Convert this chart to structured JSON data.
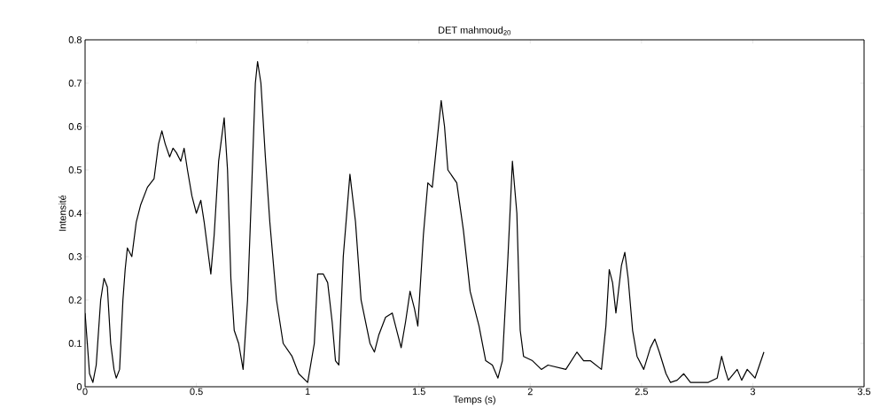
{
  "chart_data": {
    "type": "line",
    "title": "DET mahmoud$_{20}$",
    "xlabel": "Temps (s)",
    "ylabel": "Intensité",
    "xlim": [
      0,
      3.5
    ],
    "ylim": [
      0,
      0.8
    ],
    "xticks": [
      0,
      0.5,
      1,
      1.5,
      2,
      2.5,
      3,
      3.5
    ],
    "yticks": [
      0,
      0.1,
      0.2,
      0.3,
      0.4,
      0.5,
      0.6,
      0.7,
      0.8
    ],
    "grid": false,
    "marker": "none",
    "line_style": "solid",
    "x": [
      0.0,
      0.01,
      0.02,
      0.035,
      0.05,
      0.07,
      0.085,
      0.1,
      0.115,
      0.13,
      0.14,
      0.155,
      0.17,
      0.18,
      0.19,
      0.21,
      0.23,
      0.25,
      0.28,
      0.31,
      0.33,
      0.345,
      0.36,
      0.38,
      0.395,
      0.41,
      0.43,
      0.445,
      0.46,
      0.48,
      0.5,
      0.52,
      0.535,
      0.555,
      0.565,
      0.58,
      0.6,
      0.625,
      0.64,
      0.655,
      0.67,
      0.69,
      0.71,
      0.73,
      0.75,
      0.765,
      0.775,
      0.79,
      0.81,
      0.83,
      0.86,
      0.89,
      0.93,
      0.96,
      1.0,
      1.03,
      1.045,
      1.07,
      1.09,
      1.11,
      1.125,
      1.14,
      1.16,
      1.19,
      1.215,
      1.24,
      1.28,
      1.3,
      1.32,
      1.35,
      1.38,
      1.405,
      1.42,
      1.44,
      1.46,
      1.48,
      1.495,
      1.52,
      1.54,
      1.56,
      1.58,
      1.6,
      1.615,
      1.63,
      1.67,
      1.7,
      1.73,
      1.77,
      1.8,
      1.83,
      1.855,
      1.875,
      1.9,
      1.92,
      1.94,
      1.955,
      1.97,
      2.01,
      2.05,
      2.08,
      2.16,
      2.21,
      2.24,
      2.27,
      2.32,
      2.34,
      2.355,
      2.37,
      2.385,
      2.41,
      2.425,
      2.44,
      2.46,
      2.48,
      2.51,
      2.54,
      2.56,
      2.58,
      2.61,
      2.63,
      2.66,
      2.69,
      2.72,
      2.8,
      2.84,
      2.86,
      2.875,
      2.89,
      2.93,
      2.95,
      2.975,
      3.01,
      3.05
    ],
    "series": [
      {
        "color": "#000000",
        "values": [
          0.17,
          0.1,
          0.03,
          0.01,
          0.05,
          0.2,
          0.25,
          0.23,
          0.1,
          0.04,
          0.02,
          0.04,
          0.2,
          0.27,
          0.32,
          0.3,
          0.38,
          0.42,
          0.46,
          0.48,
          0.56,
          0.59,
          0.56,
          0.53,
          0.55,
          0.54,
          0.52,
          0.55,
          0.5,
          0.44,
          0.4,
          0.43,
          0.38,
          0.3,
          0.26,
          0.35,
          0.52,
          0.62,
          0.5,
          0.25,
          0.13,
          0.1,
          0.04,
          0.2,
          0.48,
          0.7,
          0.75,
          0.7,
          0.53,
          0.38,
          0.2,
          0.1,
          0.07,
          0.03,
          0.01,
          0.1,
          0.26,
          0.26,
          0.24,
          0.15,
          0.06,
          0.05,
          0.3,
          0.49,
          0.38,
          0.2,
          0.1,
          0.08,
          0.12,
          0.16,
          0.17,
          0.12,
          0.09,
          0.15,
          0.22,
          0.18,
          0.14,
          0.35,
          0.47,
          0.46,
          0.56,
          0.66,
          0.6,
          0.5,
          0.47,
          0.36,
          0.22,
          0.14,
          0.06,
          0.05,
          0.02,
          0.06,
          0.3,
          0.52,
          0.4,
          0.13,
          0.07,
          0.06,
          0.04,
          0.05,
          0.04,
          0.08,
          0.06,
          0.06,
          0.04,
          0.14,
          0.27,
          0.24,
          0.17,
          0.28,
          0.31,
          0.25,
          0.13,
          0.07,
          0.04,
          0.09,
          0.11,
          0.08,
          0.03,
          0.01,
          0.015,
          0.03,
          0.01,
          0.01,
          0.02,
          0.07,
          0.04,
          0.015,
          0.04,
          0.015,
          0.04,
          0.02,
          0.08
        ]
      }
    ]
  }
}
